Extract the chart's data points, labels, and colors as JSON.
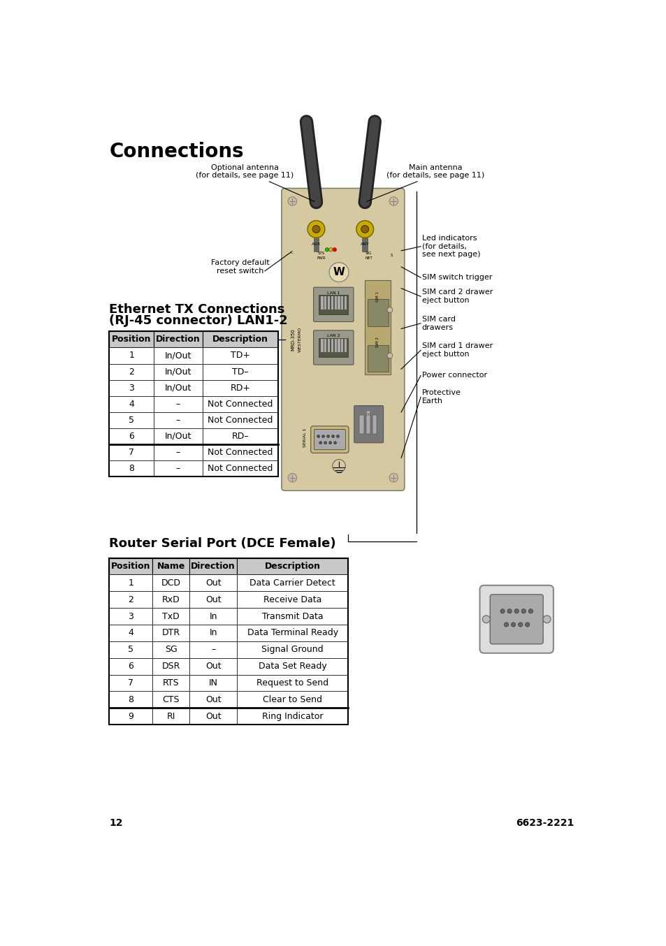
{
  "title": "Connections",
  "page_num": "12",
  "doc_num": "6623-2221",
  "bg_color": "#ffffff",
  "title_fontsize": 20,
  "eth_section_title_line1": "Ethernet TX Connections",
  "eth_section_title_line2": "(RJ-45 connector) LAN1-2",
  "eth_headers": [
    "Position",
    "Direction",
    "Description"
  ],
  "eth_rows": [
    [
      "1",
      "In/Out",
      "TD+"
    ],
    [
      "2",
      "In/Out",
      "TD–"
    ],
    [
      "3",
      "In/Out",
      "RD+"
    ],
    [
      "4",
      "–",
      "Not Connected"
    ],
    [
      "5",
      "–",
      "Not Connected"
    ],
    [
      "6",
      "In/Out",
      "RD–"
    ],
    [
      "7",
      "–",
      "Not Connected"
    ],
    [
      "8",
      "–",
      "Not Connected"
    ]
  ],
  "serial_section_title": "Router Serial Port (DCE Female)",
  "serial_headers": [
    "Position",
    "Name",
    "Direction",
    "Description"
  ],
  "serial_rows": [
    [
      "1",
      "DCD",
      "Out",
      "Data Carrier Detect"
    ],
    [
      "2",
      "RxD",
      "Out",
      "Receive Data"
    ],
    [
      "3",
      "TxD",
      "In",
      "Transmit Data"
    ],
    [
      "4",
      "DTR",
      "In",
      "Data Terminal Ready"
    ],
    [
      "5",
      "SG",
      "–",
      "Signal Ground"
    ],
    [
      "6",
      "DSR",
      "Out",
      "Data Set Ready"
    ],
    [
      "7",
      "RTS",
      "IN",
      "Request to Send"
    ],
    [
      "8",
      "CTS",
      "Out",
      "Clear to Send"
    ],
    [
      "9",
      "RI",
      "Out",
      "Ring Indicator"
    ]
  ],
  "header_bg": "#c8c8c8",
  "device_color": "#d4c9a0",
  "ann_fontsize": 8.0,
  "ann_color": "#000000"
}
